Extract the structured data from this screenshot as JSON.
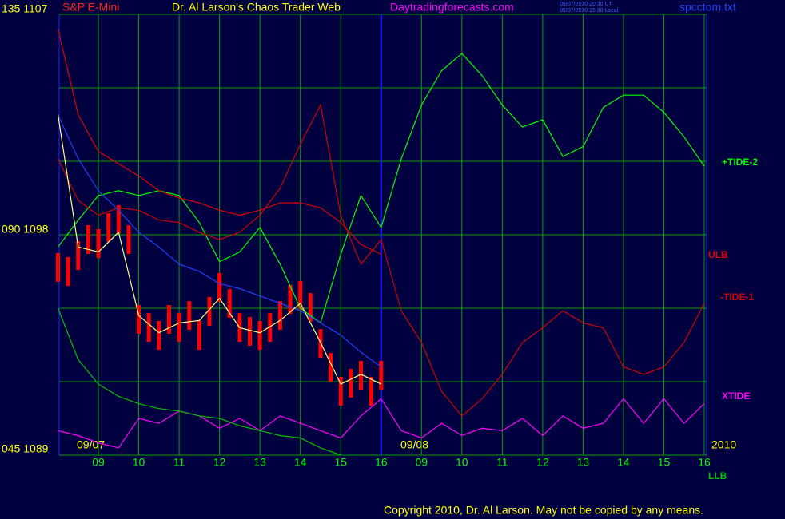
{
  "chart_data": {
    "type": "line",
    "header": {
      "symbol": "S&P E-Mini",
      "title": "Dr. Al Larson's Chaos Trader Web",
      "site": "Daytradingforecasts.com",
      "time_ut": "09/07/2010 20:30 UT",
      "time_local": "09/07/2010 15:30 Local",
      "file": "spcctom.txt"
    },
    "copyright": "Copyright 2010, Dr. Al Larson. May not be copied by any means.",
    "date_labels": [
      "09/07",
      "09/08",
      "2010"
    ],
    "xlim": [
      0,
      16
    ],
    "ylim": [
      1089,
      1107
    ],
    "xticks": [
      {
        "value": 1,
        "label": "09"
      },
      {
        "value": 2,
        "label": "10"
      },
      {
        "value": 3,
        "label": "11"
      },
      {
        "value": 4,
        "label": "12"
      },
      {
        "value": 5,
        "label": "13"
      },
      {
        "value": 6,
        "label": "14"
      },
      {
        "value": 7,
        "label": "15"
      },
      {
        "value": 8,
        "label": "16"
      },
      {
        "value": 9,
        "label": "09"
      },
      {
        "value": 10,
        "label": "10"
      },
      {
        "value": 11,
        "label": "11"
      },
      {
        "value": 12,
        "label": "12"
      },
      {
        "value": 13,
        "label": "13"
      },
      {
        "value": 14,
        "label": "14"
      },
      {
        "value": 15,
        "label": "15"
      },
      {
        "value": 16,
        "label": "16"
      }
    ],
    "yticks": [
      {
        "value": 1089,
        "label": "045 1089"
      },
      1092,
      1095,
      {
        "value": 1098,
        "label": "090 1098"
      },
      1101,
      1104,
      {
        "value": 1107,
        "label": "135 1107"
      }
    ],
    "day_divider": 8,
    "grid": true,
    "x": [
      0,
      0.5,
      1,
      1.5,
      2,
      2.5,
      3,
      3.5,
      4,
      4.5,
      5,
      5.5,
      6,
      6.5,
      7,
      7.5,
      8,
      8.5,
      9,
      9.5,
      10,
      10.5,
      11,
      11.5,
      12,
      12.5,
      13,
      13.5,
      14,
      14.5,
      15,
      15.5,
      16
    ],
    "series": [
      {
        "name": "+TIDE-2",
        "color": "#00ff00",
        "values": [
          1097.5,
          1098.6,
          1099.6,
          1099.8,
          1099.6,
          1099.8,
          1099.6,
          1098.5,
          1096.9,
          1097.3,
          1098.3,
          1096.8,
          1095.0,
          1094.4,
          1097.2,
          1099.6,
          1098.3,
          1101.1,
          1103.3,
          1104.7,
          1105.4,
          1104.5,
          1103.3,
          1102.4,
          1102.7,
          1101.2,
          1101.6,
          1103.2,
          1103.7,
          1103.7,
          1103.0,
          1102.0,
          1100.8
        ]
      },
      {
        "name": "ULB",
        "color": "#e00000",
        "values": [
          1106.4,
          1102.9,
          1101.4,
          1100.9,
          1100.4,
          1099.8,
          1099.5,
          1099.3,
          1099.0,
          1098.8,
          1099.0,
          1099.3,
          1099.3,
          1099.1,
          1098.5,
          1097.6,
          1097.2,
          null,
          null,
          null,
          null,
          null,
          null,
          null,
          null,
          null,
          null,
          null,
          null,
          null,
          null,
          null,
          null
        ]
      },
      {
        "name": "-TIDE-1",
        "color": "#d00000",
        "values": [
          1101.1,
          1099.4,
          1098.8,
          1099.1,
          1099.0,
          1098.6,
          1098.5,
          1098.1,
          1097.8,
          1098.1,
          1098.8,
          1099.9,
          1101.7,
          1103.3,
          1098.8,
          1096.8,
          1097.8,
          1094.9,
          1093.6,
          1091.6,
          1090.6,
          1091.3,
          1092.3,
          1093.6,
          1094.2,
          1094.9,
          1094.4,
          1094.2,
          1092.6,
          1092.3,
          1092.6,
          1093.6,
          1095.2
        ]
      },
      {
        "name": "XTIDE",
        "color": "#ff00ff",
        "values": [
          1090.0,
          1089.8,
          1089.5,
          1089.3,
          1090.5,
          1090.3,
          1090.8,
          1090.6,
          1090.1,
          1090.5,
          1090.0,
          1090.6,
          1090.3,
          1090.0,
          1089.7,
          1090.6,
          1091.3,
          1090.0,
          1089.7,
          1090.3,
          1089.8,
          1090.1,
          1090.0,
          1090.5,
          1089.8,
          1090.6,
          1090.1,
          1090.3,
          1091.3,
          1090.3,
          1091.3,
          1090.3,
          1091.1
        ]
      },
      {
        "name": "LLB",
        "color": "#00c000",
        "values": [
          1095.0,
          1092.9,
          1091.9,
          1091.4,
          1091.1,
          1090.9,
          1090.8,
          1090.6,
          1090.5,
          1090.2,
          1090.0,
          1089.8,
          1089.7,
          1089.3,
          1089.0,
          null,
          null,
          null,
          null,
          null,
          null,
          null,
          null,
          null,
          null,
          null,
          null,
          null,
          null,
          null,
          null,
          null,
          null
        ]
      },
      {
        "color": "#2040ff",
        "values": [
          1102.9,
          1101.1,
          1099.8,
          1099.0,
          1098.1,
          1097.5,
          1096.8,
          1096.5,
          1096.0,
          1095.8,
          1095.5,
          1095.2,
          1094.9,
          1094.4,
          1093.9,
          1093.2,
          1092.6,
          null,
          null,
          null,
          null,
          null,
          null,
          null,
          null,
          null,
          null,
          null,
          null,
          null,
          null,
          null,
          null
        ]
      },
      {
        "color": "#ffff80",
        "values": [
          1102.9,
          1097.5,
          1097.3,
          1098.1,
          1094.7,
          1094.0,
          1094.4,
          1094.5,
          1095.4,
          1094.2,
          1094.0,
          1094.5,
          1095.2,
          1093.6,
          1091.9,
          1092.3,
          1091.9,
          null,
          null,
          null,
          null,
          null,
          null,
          null,
          null,
          null,
          null,
          null,
          null,
          null,
          null,
          null,
          null
        ]
      }
    ],
    "bars": {
      "color": "#ff0000",
      "x": [
        0,
        0.25,
        0.5,
        0.75,
        1,
        1.25,
        1.5,
        1.75,
        2,
        2.25,
        2.5,
        2.75,
        3,
        3.25,
        3.5,
        3.75,
        4,
        4.25,
        4.5,
        4.75,
        5,
        5.25,
        5.5,
        5.75,
        6,
        6.25,
        6.5,
        6.75,
        7,
        7.25,
        7.5,
        7.75,
        8
      ],
      "high": [
        1097.25,
        1097.09,
        1097.74,
        1098.39,
        1098.23,
        1098.88,
        1099.21,
        1098.39,
        1095.13,
        1094.8,
        1094.48,
        1095.13,
        1094.8,
        1095.29,
        1094.48,
        1095.46,
        1096.44,
        1095.78,
        1094.8,
        1094.64,
        1094.48,
        1094.8,
        1095.29,
        1095.95,
        1096.11,
        1095.62,
        1094.15,
        1093.17,
        1092.2,
        1092.52,
        1092.85,
        1092.2,
        1092.85
      ],
      "low": [
        1096.08,
        1095.91,
        1096.56,
        1097.22,
        1097.05,
        1097.71,
        1098.03,
        1097.22,
        1093.96,
        1093.63,
        1093.3,
        1093.96,
        1093.63,
        1094.12,
        1093.3,
        1094.28,
        1095.26,
        1094.61,
        1093.63,
        1093.47,
        1093.3,
        1093.63,
        1094.12,
        1094.77,
        1094.94,
        1094.45,
        1092.98,
        1092.0,
        1091.02,
        1091.35,
        1091.67,
        1091.02,
        1091.67
      ]
    }
  }
}
